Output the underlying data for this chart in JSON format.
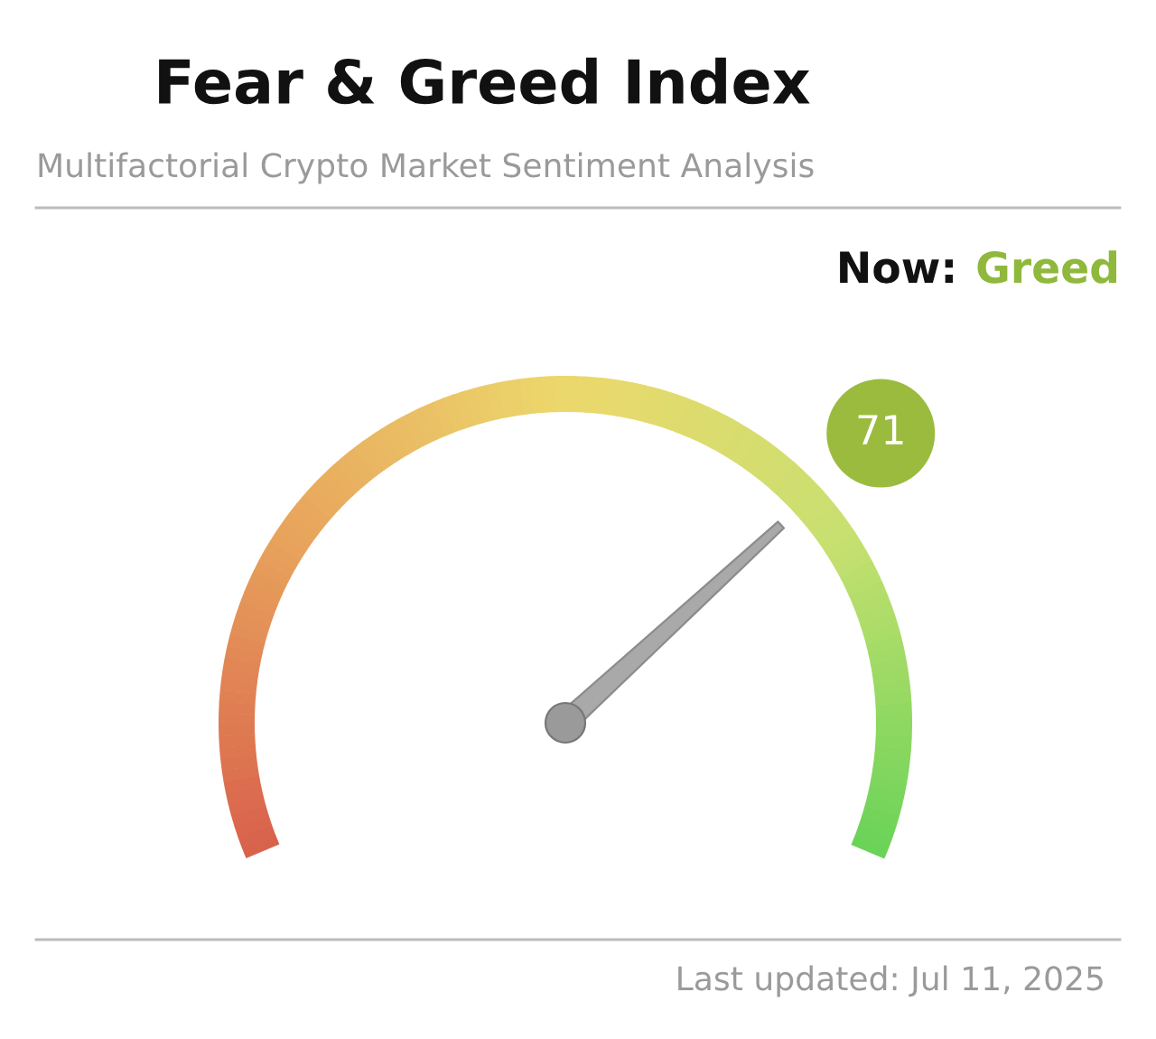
{
  "chart_data": {
    "type": "other",
    "title": "Fear & Greed Index",
    "subtitle": "Multifactorial Crypto Market Sentiment Analysis",
    "values": [
      71
    ],
    "data_labels": true,
    "annotations": [
      "Now:",
      "Greed",
      "Last updated: Jul 11, 2025"
    ]
  }
}
